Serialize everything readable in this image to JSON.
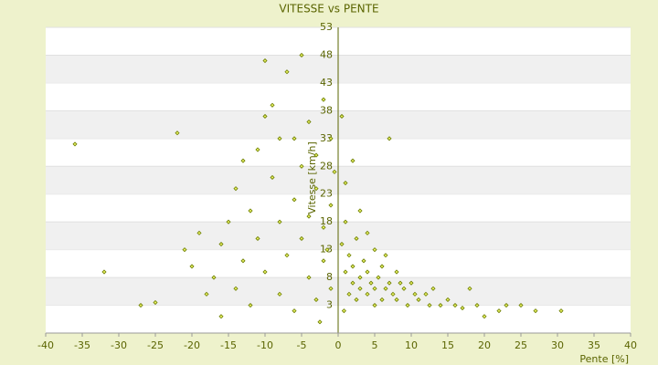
{
  "chart_data": {
    "type": "scatter",
    "title": "VITESSE vs PENTE",
    "x_label": "Pente [%]",
    "y_label": "Vitesse [km/h]",
    "color": "#6b7d00",
    "xlim": [
      -40,
      40
    ],
    "xticks": [
      -40,
      -35,
      -30,
      -25,
      -20,
      -15,
      -10,
      -5,
      0,
      5,
      10,
      15,
      20,
      25,
      30,
      35,
      40
    ],
    "ylim": [
      -2,
      53
    ],
    "yticks": [
      3,
      8,
      13,
      18,
      23,
      28,
      33,
      38,
      43,
      48,
      53
    ],
    "x": [
      -36,
      -32,
      -27,
      -25,
      -22,
      -21,
      -20,
      -19,
      -18,
      -17,
      -16,
      -16,
      -15,
      -14,
      -14,
      -13,
      -12,
      -12,
      -11,
      -11,
      -10,
      -10,
      -9,
      -9,
      -8,
      -8,
      -7,
      -7,
      -6,
      -6,
      -6,
      -5,
      -5,
      -5,
      -4,
      -4,
      -4,
      -3,
      -3,
      -3,
      -2,
      -2,
      -2,
      -1,
      -1,
      -1,
      -0.5,
      0.5,
      0.5,
      1,
      1,
      1.5,
      1.5,
      2,
      2,
      2,
      2.5,
      3,
      3,
      3.5,
      4,
      4,
      4.5,
      5,
      5,
      5.5,
      6,
      6,
      6.5,
      7,
      7,
      7.5,
      8,
      8,
      9,
      9.5,
      10,
      10.5,
      11,
      12,
      12.5,
      13,
      14,
      15,
      16,
      17,
      18,
      19,
      20,
      22,
      23,
      25,
      27,
      30.5,
      3,
      4,
      1,
      -1.5,
      5,
      6.5,
      8.5,
      2.5,
      0.8,
      -2.5,
      -8,
      -13,
      -10
    ],
    "values": [
      32,
      9,
      3,
      3.5,
      34,
      13,
      10,
      16,
      5,
      8,
      1,
      14,
      18,
      24,
      6,
      11,
      20,
      3,
      31,
      15,
      47,
      9,
      39,
      26,
      18,
      5,
      45,
      12,
      33,
      22,
      2,
      48,
      28,
      15,
      36,
      19,
      8,
      30,
      24,
      4,
      40,
      17,
      11,
      33,
      21,
      6,
      27,
      37,
      14,
      18,
      9,
      12,
      5,
      29,
      10,
      7,
      15,
      8,
      6,
      11,
      9,
      5,
      7,
      13,
      6,
      8,
      4,
      10,
      6,
      7,
      33,
      5,
      9,
      4,
      6,
      3,
      7,
      5,
      4,
      5,
      3,
      6,
      3,
      4,
      3,
      2.5,
      6,
      3,
      1,
      2,
      3,
      3,
      2,
      2,
      20,
      16,
      25,
      13,
      3,
      12,
      7,
      4,
      2,
      0,
      33,
      29,
      37
    ]
  }
}
